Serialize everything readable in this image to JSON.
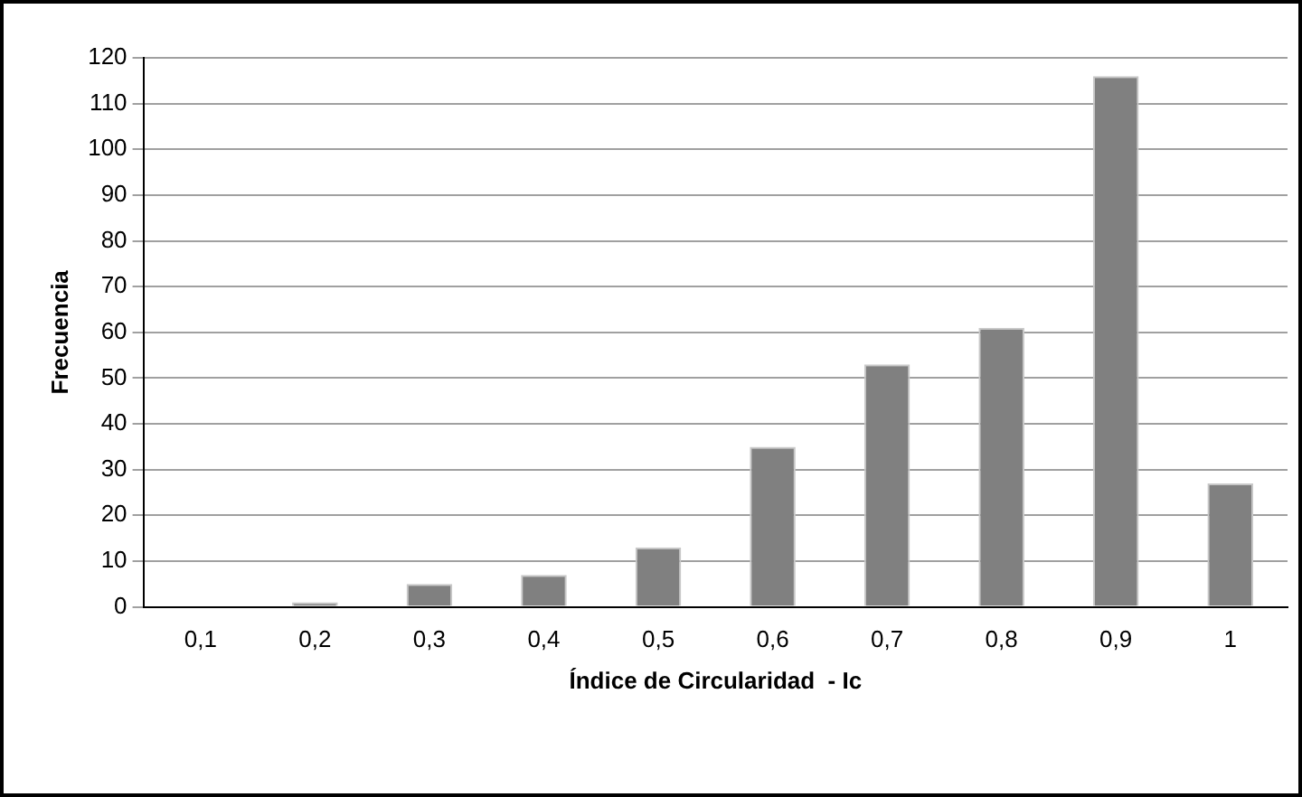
{
  "chart_data": {
    "type": "bar",
    "xlabel": "Índice de Circularidad  - Ic",
    "ylabel": "Frecuencia",
    "categories": [
      "0,1",
      "0,2",
      "0,3",
      "0,4",
      "0,5",
      "0,6",
      "0,7",
      "0,8",
      "0,9",
      "1"
    ],
    "values": [
      0,
      1,
      5,
      7,
      13,
      35,
      53,
      61,
      116,
      27
    ],
    "color": "#808080",
    "ylim": [
      0,
      120
    ],
    "yticks": [
      0,
      10,
      20,
      30,
      40,
      50,
      60,
      70,
      80,
      90,
      100,
      110,
      120
    ],
    "grid": "y",
    "legend": false
  }
}
